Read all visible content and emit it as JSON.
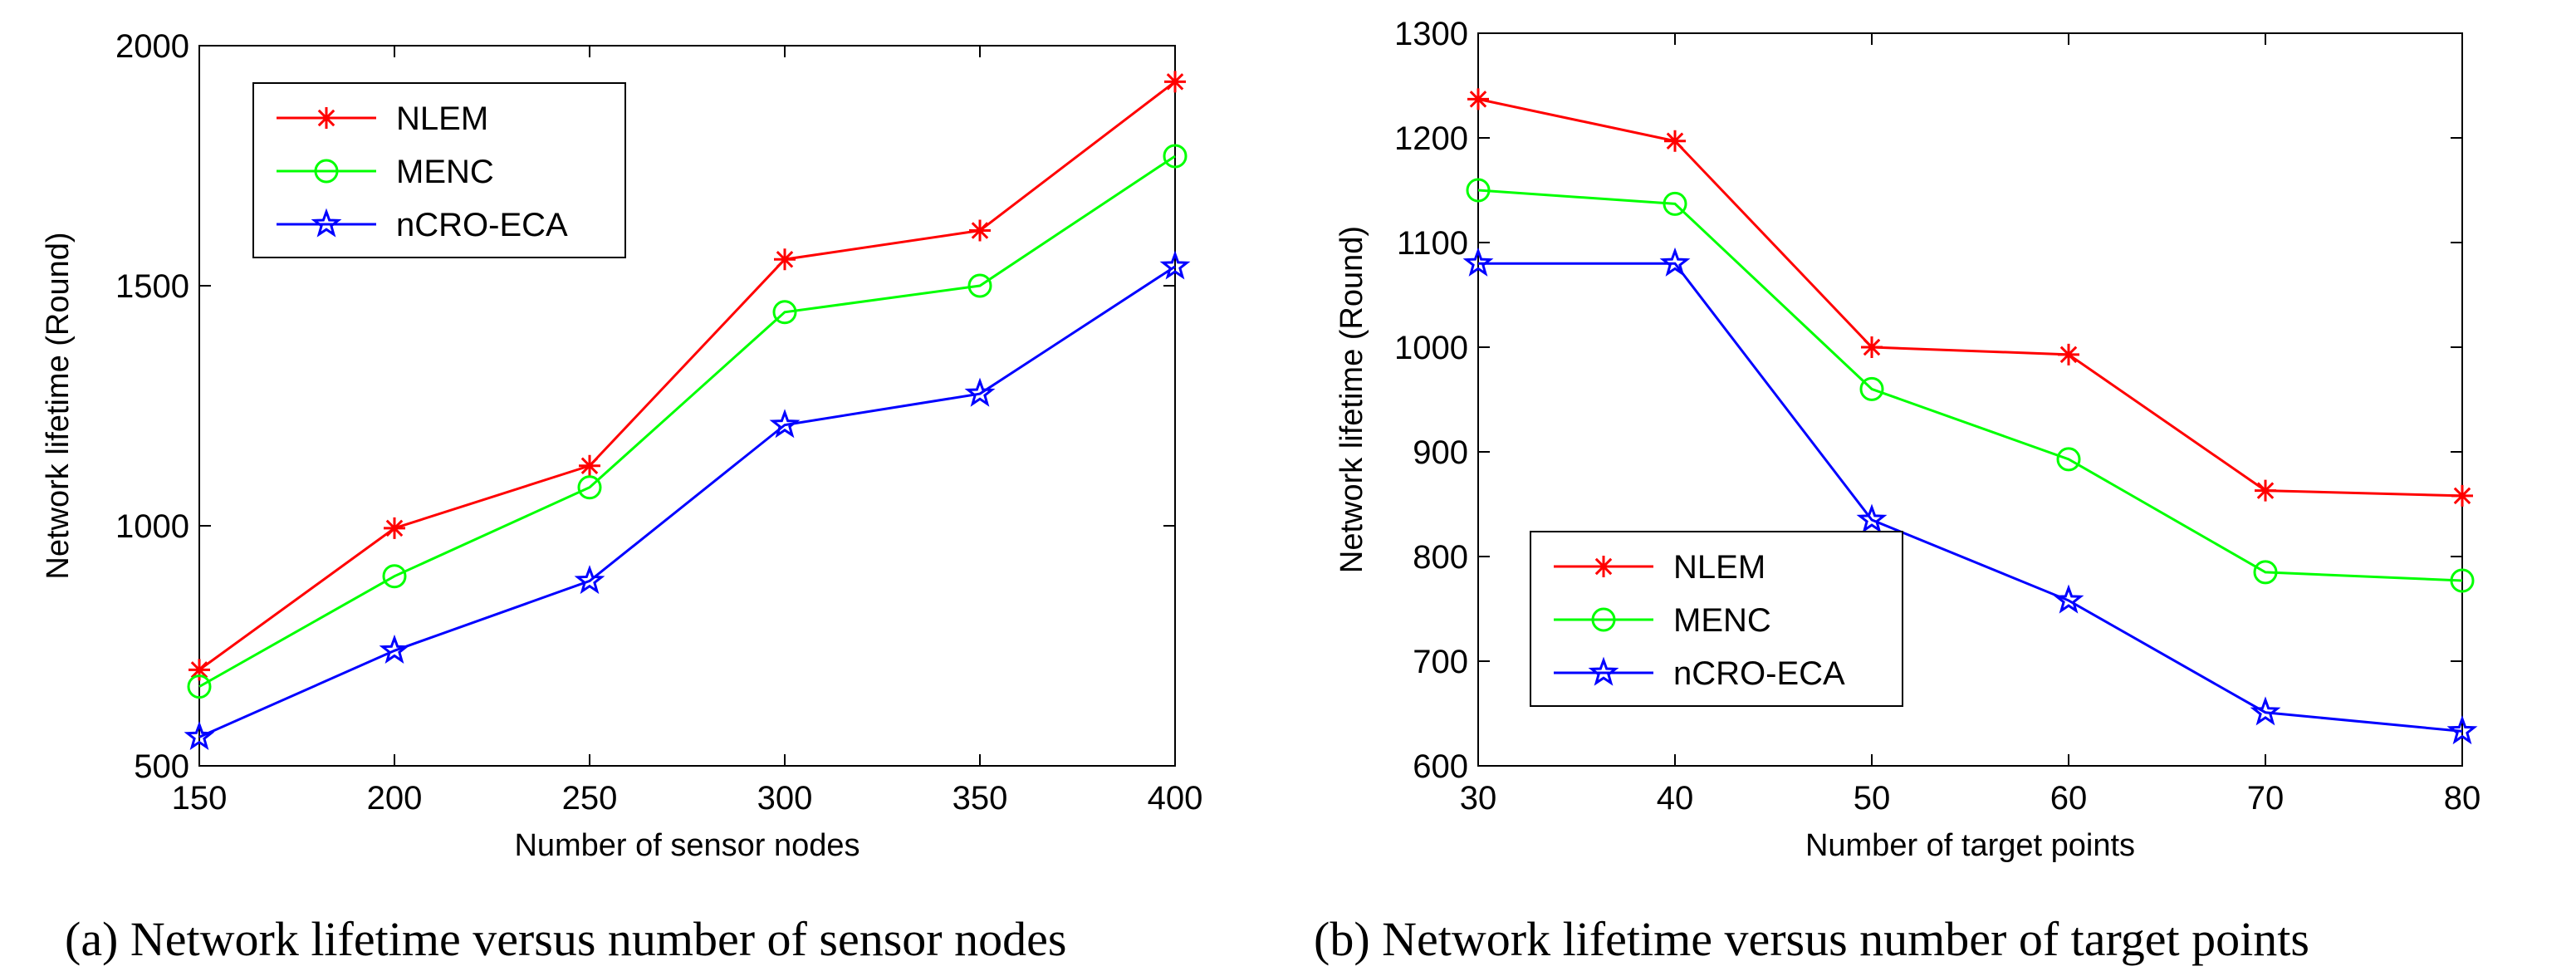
{
  "chart_data": [
    {
      "type": "line",
      "panel": "a",
      "title": "",
      "xlabel": "Number of sensor nodes",
      "ylabel": "Network lifetime (Round)",
      "x": [
        150,
        200,
        250,
        300,
        350,
        400
      ],
      "xlim": [
        150,
        400
      ],
      "ylim": [
        500,
        2000
      ],
      "xticks": [
        150,
        200,
        250,
        300,
        350,
        400
      ],
      "yticks": [
        500,
        1000,
        1500,
        2000
      ],
      "grid": false,
      "legend_position": "top-left",
      "series": [
        {
          "name": "NLEM",
          "color": "#ff0000",
          "marker": "asterisk",
          "values": [
            700,
            995,
            1125,
            1555,
            1615,
            1925
          ]
        },
        {
          "name": "MENC",
          "color": "#00ff00",
          "marker": "circle",
          "values": [
            665,
            895,
            1080,
            1445,
            1500,
            1770
          ]
        },
        {
          "name": "nCRO-ECA",
          "color": "#0000ff",
          "marker": "pentagram",
          "values": [
            560,
            740,
            885,
            1210,
            1275,
            1540
          ]
        }
      ],
      "caption": "(a) Network lifetime versus number of sensor nodes"
    },
    {
      "type": "line",
      "panel": "b",
      "title": "",
      "xlabel": "Number of target points",
      "ylabel": "Network lifetime (Round)",
      "x": [
        30,
        40,
        50,
        60,
        70,
        80
      ],
      "xlim": [
        30,
        80
      ],
      "ylim": [
        600,
        1300
      ],
      "xticks": [
        30,
        40,
        50,
        60,
        70,
        80
      ],
      "yticks": [
        600,
        700,
        800,
        900,
        1000,
        1100,
        1200,
        1300
      ],
      "grid": false,
      "legend_position": "bottom-left",
      "series": [
        {
          "name": "NLEM",
          "color": "#ff0000",
          "marker": "asterisk",
          "values": [
            1237,
            1197,
            1000,
            993,
            863,
            858
          ]
        },
        {
          "name": "MENC",
          "color": "#00ff00",
          "marker": "circle",
          "values": [
            1150,
            1137,
            960,
            893,
            785,
            777
          ]
        },
        {
          "name": "nCRO-ECA",
          "color": "#0000ff",
          "marker": "pentagram",
          "values": [
            1080,
            1080,
            835,
            758,
            651,
            633
          ]
        }
      ],
      "caption": "(b) Network lifetime versus number of target points"
    }
  ]
}
